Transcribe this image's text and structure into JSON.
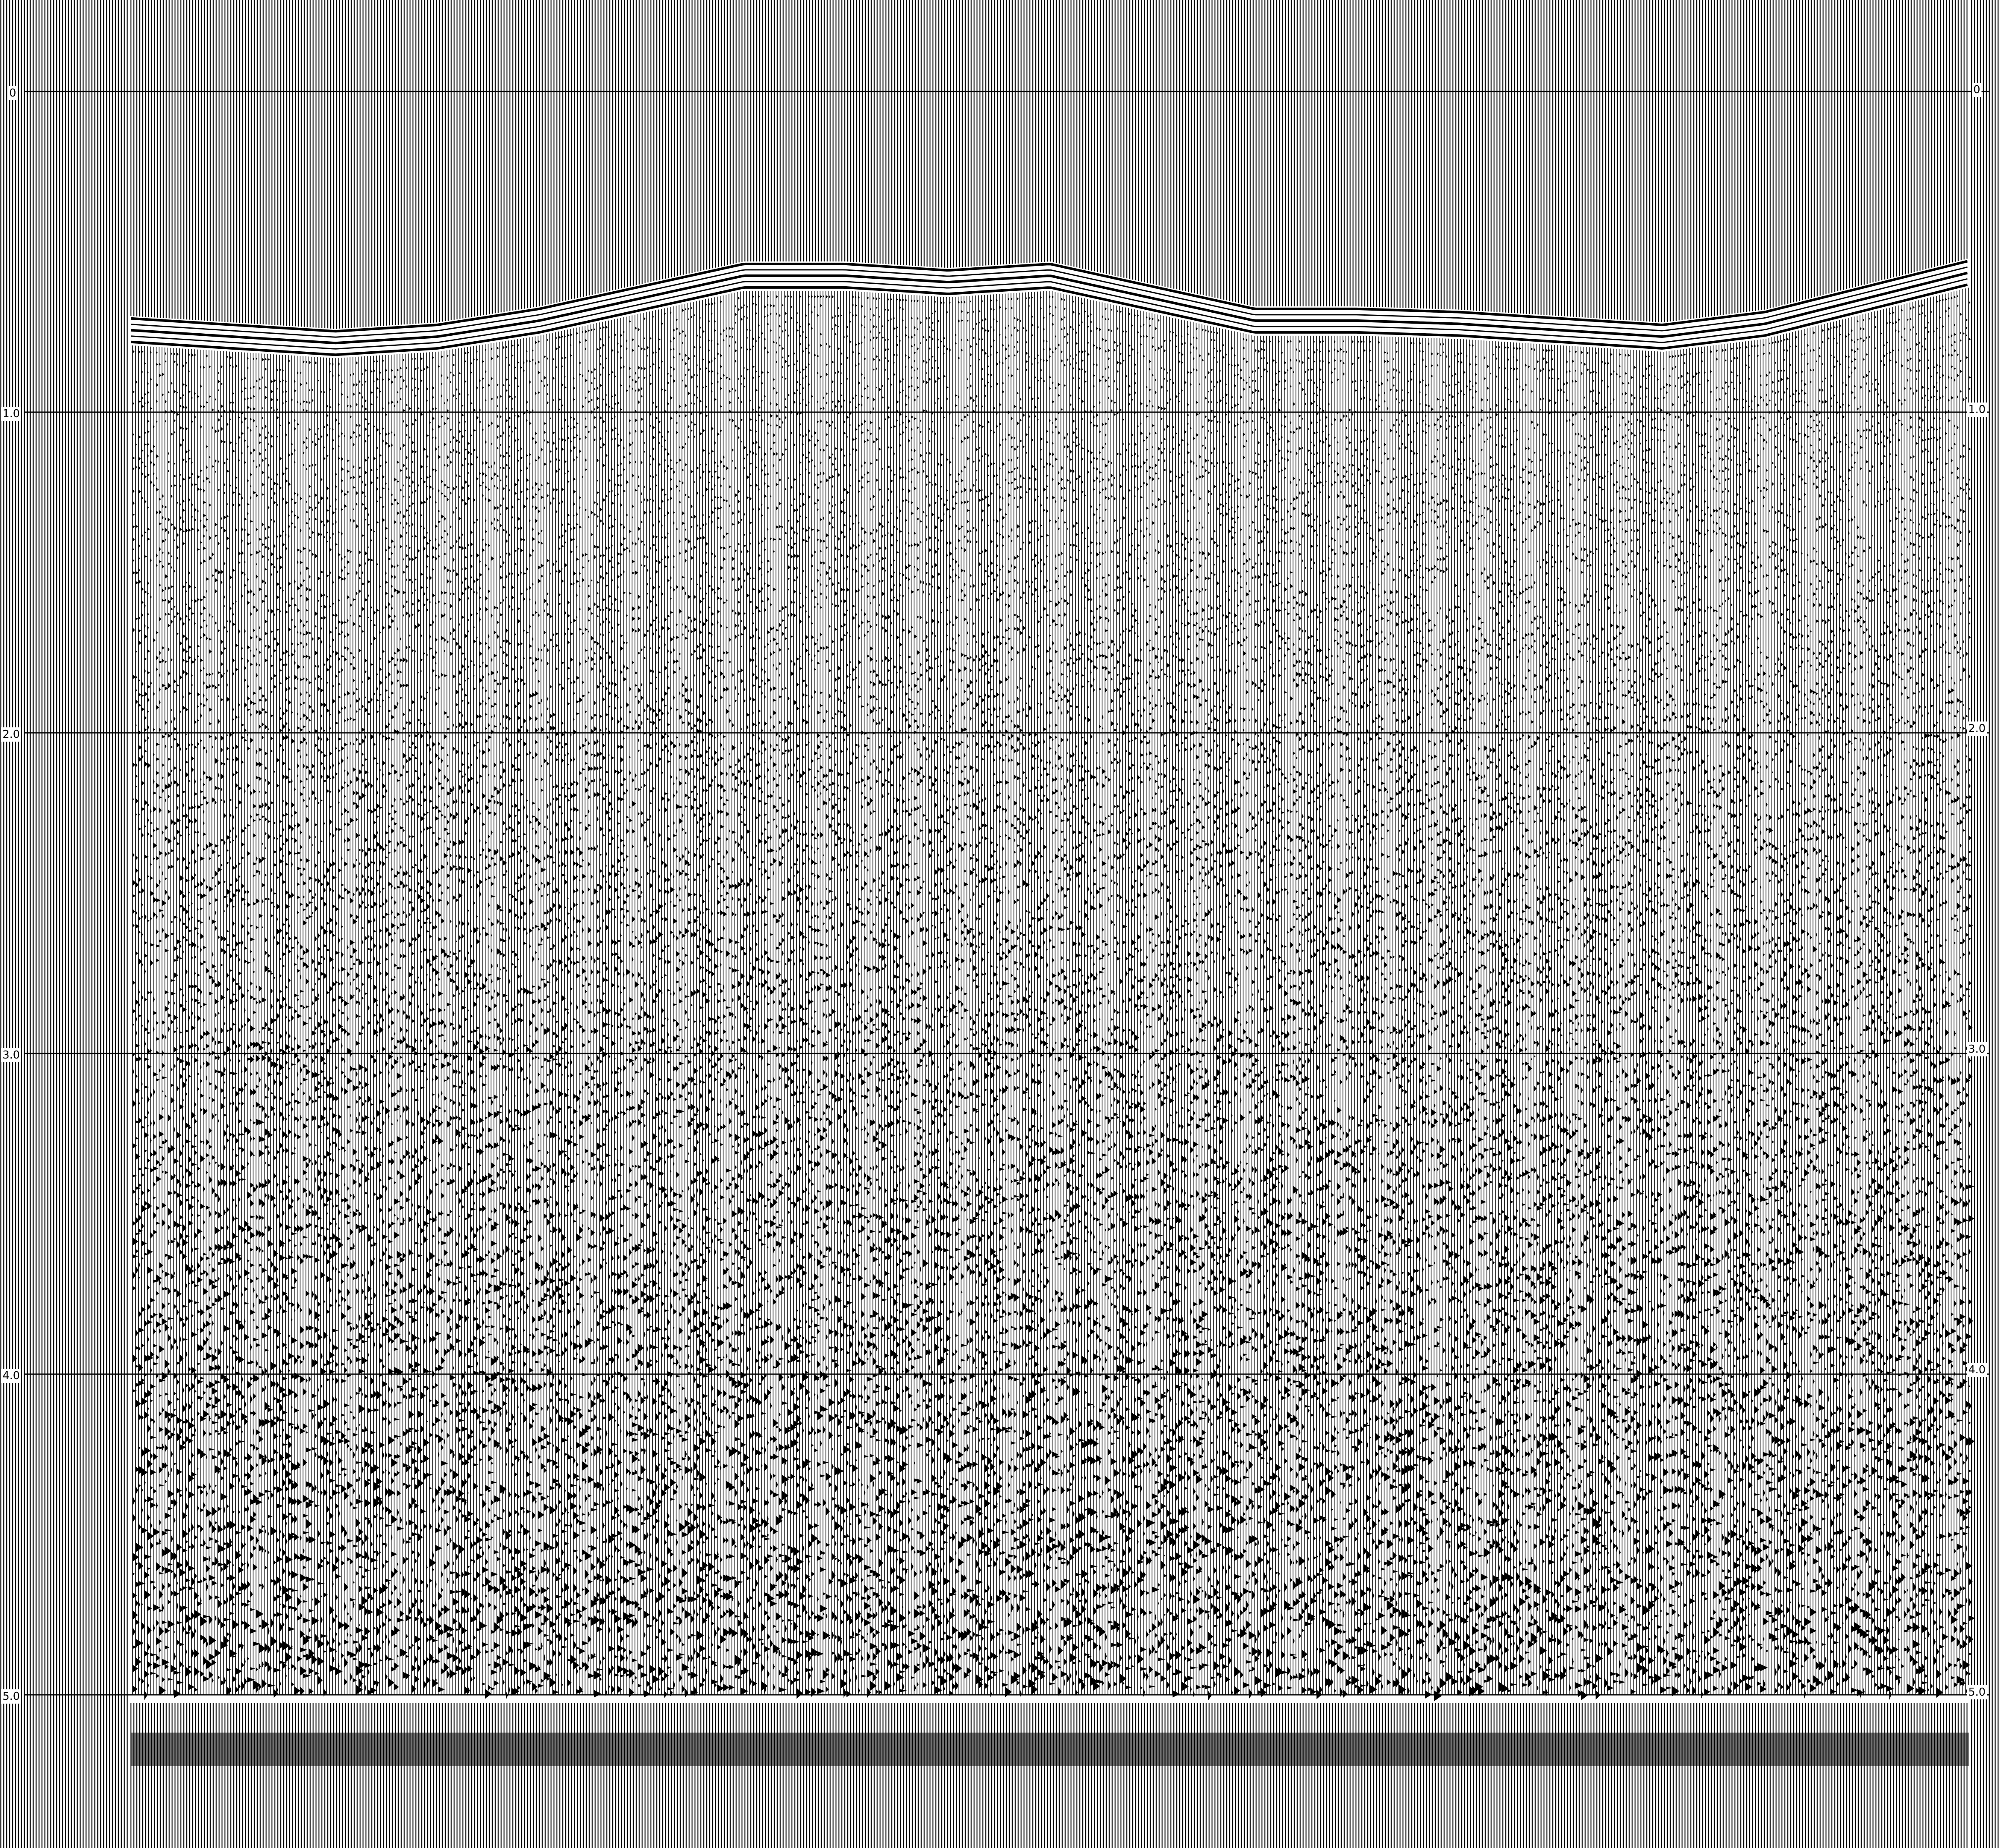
{
  "section": {
    "time_axis": {
      "unit_hint": "s",
      "left_labels": [
        "0",
        "1.0",
        "2.0",
        "3.0",
        "4.0",
        "5.0"
      ],
      "right_labels": [
        "0",
        "1.0",
        "2.0",
        "3.0",
        "4.0",
        "5.0"
      ],
      "values": [
        0,
        1.0,
        2.0,
        3.0,
        4.0,
        5.0
      ]
    },
    "bottom_labels": [],
    "water_bottom_times_s": [
      0.7,
      0.72,
      0.74,
      0.72,
      0.67,
      0.6,
      0.53,
      0.53,
      0.55,
      0.53,
      0.6,
      0.67,
      0.67,
      0.68,
      0.7,
      0.72,
      0.68,
      0.6,
      0.52
    ],
    "colors": {
      "ink": "#000000",
      "paper": "#ffffff"
    }
  }
}
